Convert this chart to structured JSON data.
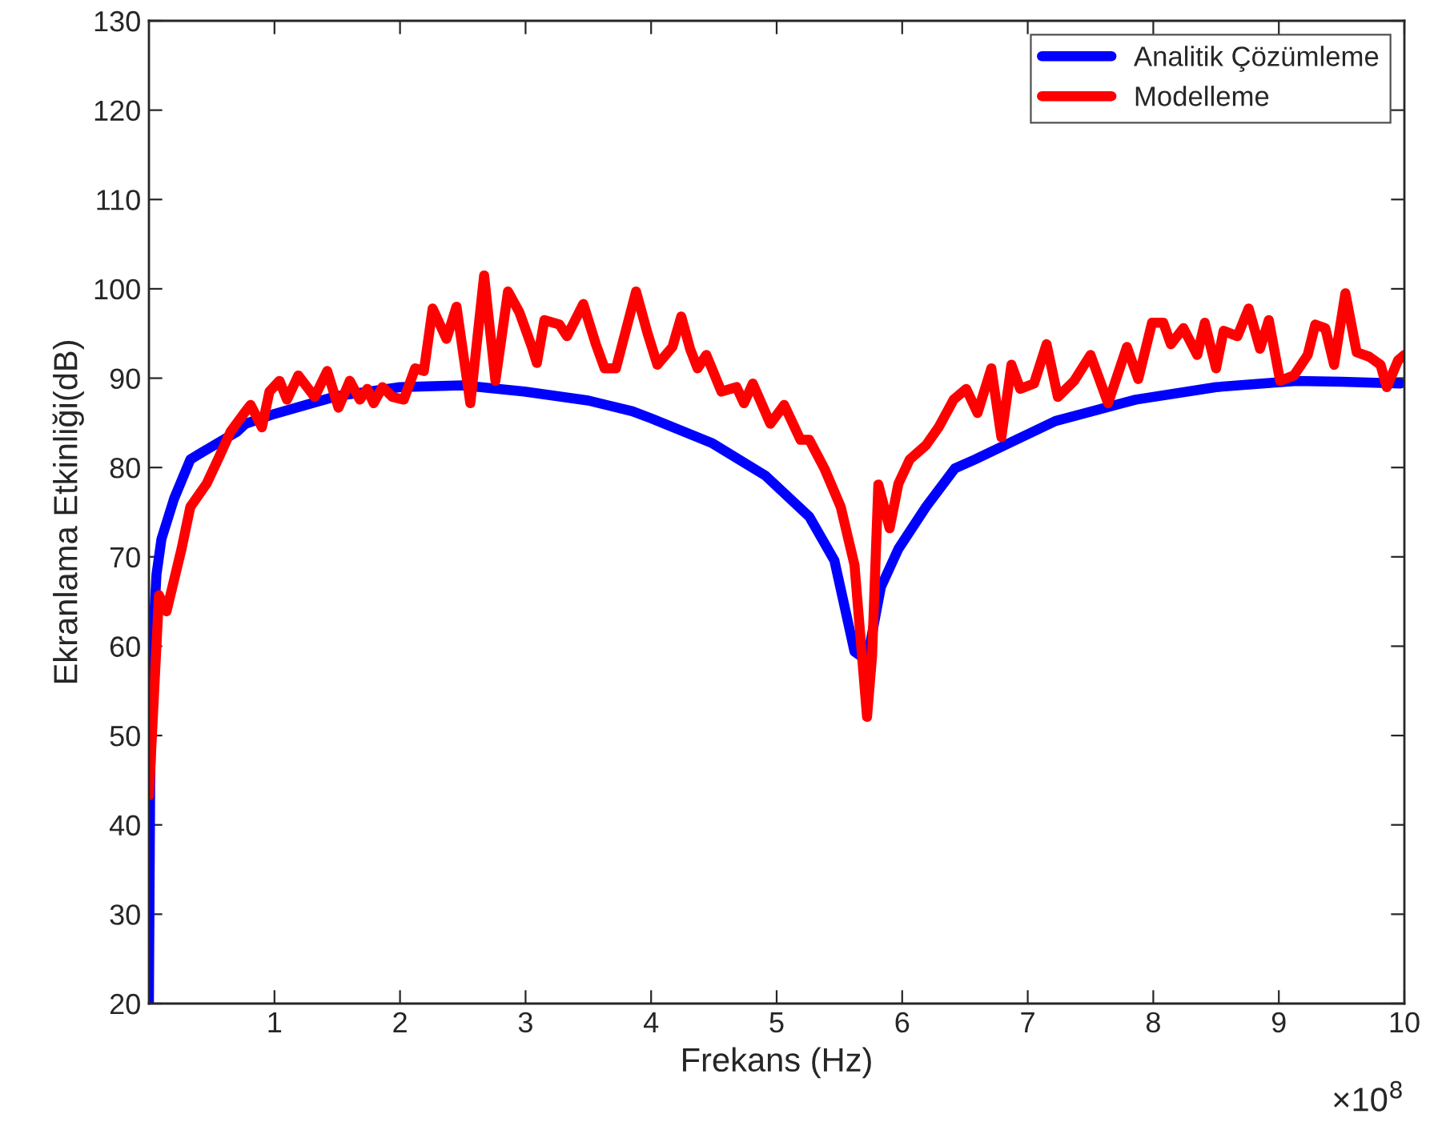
{
  "chart_data": {
    "type": "line",
    "xlabel": "Frekans (Hz)",
    "ylabel": "Ekranlama Etkinliği(dB)",
    "annotations": [
      "×10$^{8}$"
    ],
    "xlim": [
      0,
      10
    ],
    "xticks": [
      1,
      2,
      3,
      4,
      5,
      6,
      7,
      8,
      9,
      10
    ],
    "ylim": [
      20,
      130
    ],
    "yticks": [
      20,
      30,
      40,
      50,
      60,
      70,
      80,
      90,
      100,
      110,
      120,
      130
    ],
    "grid": false,
    "legend": "top right",
    "marker": "none",
    "line_style": "solid",
    "series": [
      {
        "name": "Analitik Çözümleme",
        "color": "#0000ff",
        "x": [
          0.0,
          0.01,
          0.03,
          0.06,
          0.1,
          0.2,
          0.33,
          0.4,
          0.7,
          0.77,
          1.0,
          1.5,
          2.0,
          2.5,
          2.99,
          3.5,
          3.85,
          4.0,
          4.49,
          4.91,
          5.26,
          5.46,
          5.62,
          5.72,
          5.83,
          5.97,
          6.19,
          6.42,
          6.58,
          7.22,
          7.86,
          8.5,
          9.14,
          9.5,
          9.97
        ],
        "values": [
          20,
          45,
          60,
          68,
          72,
          76.5,
          80.9,
          81.5,
          84,
          84.9,
          86,
          88,
          89,
          89.2,
          88.5,
          87.5,
          86.3,
          85.5,
          82.7,
          79.1,
          74.5,
          69.6,
          59.4,
          58.4,
          66.6,
          70.9,
          75.6,
          79.9,
          80.9,
          85.2,
          87.6,
          89,
          89.7,
          89.6,
          89.4
        ]
      },
      {
        "name": "Modelleme",
        "color": "#ff0000",
        "x": [
          0.0,
          0.08,
          0.14,
          0.26,
          0.33,
          0.46,
          0.55,
          0.65,
          0.77,
          0.81,
          0.9,
          0.96,
          1.04,
          1.1,
          1.19,
          1.32,
          1.42,
          1.51,
          1.6,
          1.68,
          1.74,
          1.79,
          1.86,
          1.94,
          2.03,
          2.12,
          2.19,
          2.26,
          2.37,
          2.45,
          2.56,
          2.67,
          2.76,
          2.86,
          2.95,
          3.05,
          3.09,
          3.15,
          3.27,
          3.33,
          3.46,
          3.56,
          3.63,
          3.72,
          3.88,
          3.97,
          4.05,
          4.17,
          4.24,
          4.31,
          4.37,
          4.44,
          4.56,
          4.68,
          4.74,
          4.81,
          4.95,
          5.06,
          5.19,
          5.26,
          5.38,
          5.51,
          5.62,
          5.68,
          5.72,
          5.76,
          5.81,
          5.9,
          5.97,
          6.06,
          6.19,
          6.29,
          6.41,
          6.51,
          6.6,
          6.71,
          6.79,
          6.87,
          6.94,
          7.05,
          7.15,
          7.24,
          7.37,
          7.5,
          7.64,
          7.79,
          7.88,
          7.99,
          8.08,
          8.14,
          8.24,
          8.35,
          8.41,
          8.5,
          8.56,
          8.67,
          8.76,
          8.85,
          8.92,
          9.01,
          9.12,
          9.23,
          9.29,
          9.37,
          9.44,
          9.53,
          9.62,
          9.72,
          9.81,
          9.86,
          9.95,
          10.0
        ],
        "values": [
          43.3,
          65.7,
          63.9,
          70.9,
          75.6,
          78.2,
          80.9,
          84,
          86.3,
          87,
          84.5,
          88.5,
          89.7,
          87.6,
          90.3,
          87.9,
          90.8,
          86.7,
          89.7,
          87.6,
          88.8,
          87.2,
          89,
          87.9,
          87.6,
          91.1,
          90.8,
          97.8,
          94.4,
          98,
          87.2,
          101.5,
          89.7,
          99.7,
          97.4,
          93.5,
          91.7,
          96.5,
          96,
          94.7,
          98.3,
          93.8,
          91.1,
          91.1,
          99.7,
          95.1,
          91.5,
          93.5,
          96.9,
          93.3,
          91.1,
          92.6,
          88.5,
          89,
          87.2,
          89.4,
          84.9,
          87,
          83.1,
          83.1,
          79.9,
          75.6,
          69.1,
          58.9,
          52.1,
          58.9,
          78.1,
          73.2,
          78.2,
          80.9,
          82.5,
          84.5,
          87.6,
          88.8,
          86.1,
          91.1,
          83.4,
          91.5,
          88.8,
          89.4,
          93.8,
          87.9,
          89.7,
          92.6,
          87.2,
          93.5,
          89.9,
          96.2,
          96.2,
          93.8,
          95.6,
          92.6,
          96.2,
          91.1,
          95.3,
          94.7,
          97.8,
          93.3,
          96.5,
          89.7,
          90.3,
          92.6,
          96,
          95.6,
          91.5,
          99.5,
          92.9,
          92.4,
          91.5,
          89,
          92,
          92.6
        ]
      }
    ]
  }
}
